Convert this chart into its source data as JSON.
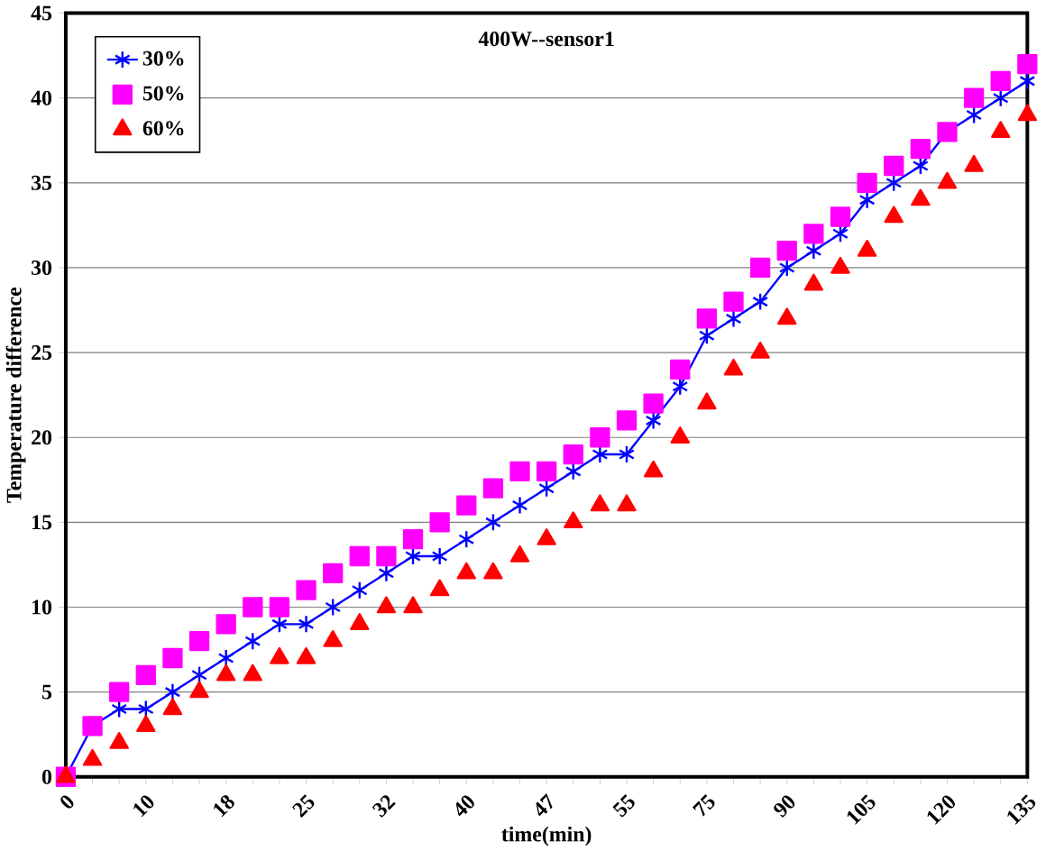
{
  "chart_data": {
    "type": "line",
    "title": "400W--sensor1",
    "xlabel": "time(min)",
    "ylabel": "Temperature difference",
    "categories": [
      "0",
      null,
      null,
      "10",
      null,
      null,
      "18",
      null,
      null,
      "25",
      null,
      null,
      "32",
      null,
      null,
      "40",
      null,
      null,
      "47",
      null,
      null,
      "55",
      null,
      null,
      "75",
      null,
      null,
      "90",
      null,
      null,
      "105",
      null,
      null,
      "120",
      null,
      null,
      "135"
    ],
    "series": [
      {
        "name": "30%",
        "color": "#0000ff",
        "marker": "cross",
        "line_style": "solid",
        "values": [
          0,
          3,
          4,
          4,
          5,
          6,
          7,
          8,
          9,
          9,
          10,
          11,
          12,
          13,
          13,
          14,
          15,
          16,
          17,
          18,
          19,
          19,
          21,
          23,
          26,
          27,
          28,
          30,
          31,
          32,
          34,
          35,
          36,
          38,
          39,
          40,
          41
        ]
      },
      {
        "name": "50%",
        "color": "#ff00ff",
        "type": "scatter",
        "marker": "square",
        "values": [
          0,
          3,
          5,
          6,
          7,
          8,
          9,
          10,
          10,
          11,
          12,
          13,
          13,
          14,
          15,
          16,
          17,
          18,
          18,
          19,
          20,
          21,
          22,
          24,
          27,
          28,
          30,
          31,
          32,
          33,
          35,
          36,
          37,
          38,
          40,
          41,
          42
        ]
      },
      {
        "name": "60%",
        "color": "#ff0000",
        "type": "scatter",
        "marker": "triangle",
        "values": [
          0,
          1,
          2,
          3,
          4,
          5,
          6,
          6,
          7,
          7,
          8,
          9,
          10,
          10,
          11,
          12,
          12,
          13,
          14,
          15,
          16,
          16,
          18,
          20,
          22,
          24,
          25,
          27,
          29,
          30,
          31,
          33,
          34,
          35,
          36,
          38,
          39
        ]
      }
    ],
    "ylim": [
      0,
      45
    ],
    "yticks": [
      0,
      5,
      10,
      15,
      20,
      25,
      30,
      35,
      40,
      45
    ],
    "grid": "y",
    "legend": "top left"
  }
}
